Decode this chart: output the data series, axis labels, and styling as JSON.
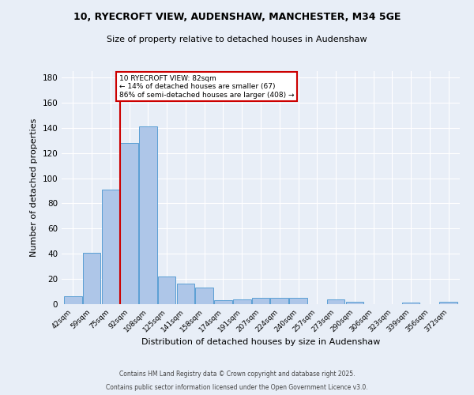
{
  "title_line1": "10, RYECROFT VIEW, AUDENSHAW, MANCHESTER, M34 5GE",
  "title_line2": "Size of property relative to detached houses in Audenshaw",
  "xlabel": "Distribution of detached houses by size in Audenshaw",
  "ylabel": "Number of detached properties",
  "bar_labels": [
    "42sqm",
    "59sqm",
    "75sqm",
    "92sqm",
    "108sqm",
    "125sqm",
    "141sqm",
    "158sqm",
    "174sqm",
    "191sqm",
    "207sqm",
    "224sqm",
    "240sqm",
    "257sqm",
    "273sqm",
    "290sqm",
    "306sqm",
    "323sqm",
    "339sqm",
    "356sqm",
    "372sqm"
  ],
  "bar_values": [
    6,
    41,
    91,
    128,
    141,
    22,
    16,
    13,
    3,
    4,
    5,
    5,
    5,
    0,
    4,
    2,
    0,
    0,
    1,
    0,
    2
  ],
  "bar_color": "#aec6e8",
  "bar_edgecolor": "#5a9fd4",
  "red_line_x": 2.5,
  "red_line_label": "10 RYECROFT VIEW: 82sqm",
  "annotation_line2": "← 14% of detached houses are smaller (67)",
  "annotation_line3": "86% of semi-detached houses are larger (408) →",
  "annotation_box_color": "#ffffff",
  "annotation_box_edgecolor": "#cc0000",
  "red_line_color": "#cc0000",
  "ylim": [
    0,
    185
  ],
  "yticks": [
    0,
    20,
    40,
    60,
    80,
    100,
    120,
    140,
    160,
    180
  ],
  "footer_line1": "Contains HM Land Registry data © Crown copyright and database right 2025.",
  "footer_line2": "Contains public sector information licensed under the Open Government Licence v3.0.",
  "bg_color": "#e8eef7",
  "plot_bg_color": "#e8eef7"
}
